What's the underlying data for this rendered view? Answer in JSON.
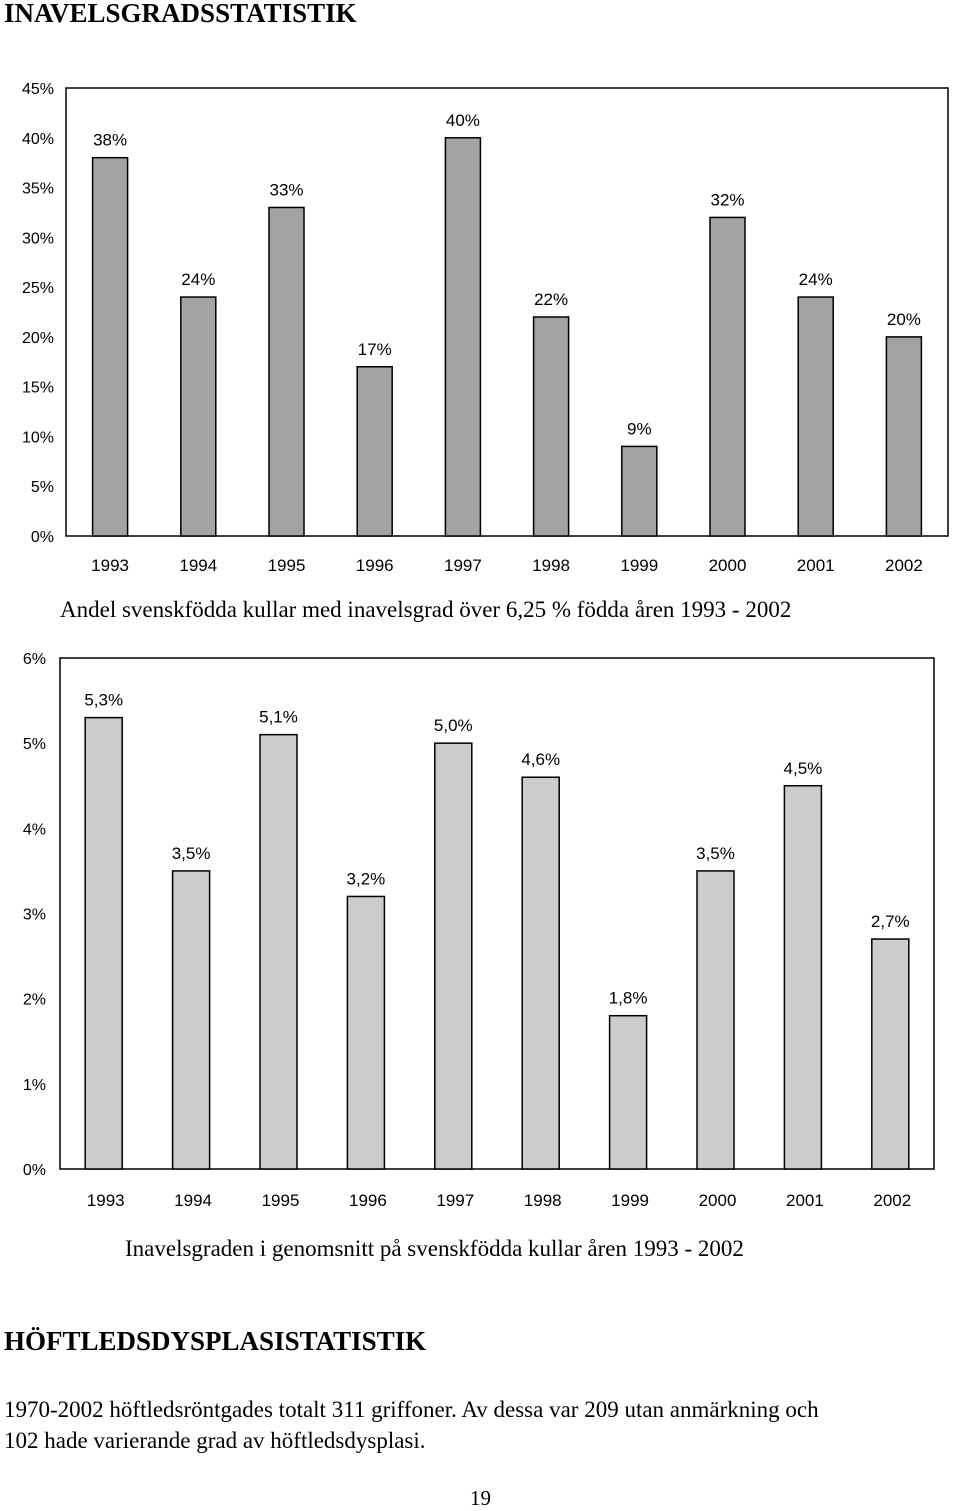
{
  "headings": {
    "inbreeding": "INAVELSGRADSSTATISTIK",
    "hip": "HÖFTLEDSDYSPLASISTATISTIK"
  },
  "captions": {
    "chart1": "Andel svenskfödda kullar med inavelsgrad över 6,25 % födda åren 1993 - 2002",
    "chart2": "Inavelsgraden i genomsnitt på svenskfödda kullar åren 1993 - 2002"
  },
  "paragraph": {
    "line1": "1970-2002 höftledsröntgades totalt 311 griffoner. Av dessa var 209 utan anmärkning och",
    "line2": "102 hade varierande grad av höftledsdysplasi."
  },
  "page_number": "19",
  "chart_data": [
    {
      "type": "bar",
      "categories": [
        "1993",
        "1994",
        "1995",
        "1996",
        "1997",
        "1998",
        "1999",
        "2000",
        "2001",
        "2002"
      ],
      "values": [
        38,
        24,
        33,
        17,
        40,
        22,
        9,
        32,
        24,
        20
      ],
      "value_labels": [
        "38%",
        "24%",
        "33%",
        "17%",
        "40%",
        "22%",
        "9%",
        "32%",
        "24%",
        "20%"
      ],
      "yticks": [
        "0%",
        "5%",
        "10%",
        "15%",
        "20%",
        "25%",
        "30%",
        "35%",
        "40%",
        "45%"
      ],
      "ylim": [
        0,
        45
      ],
      "ystep": 5,
      "grid": false,
      "bar_color": "#a3a3a3"
    },
    {
      "type": "bar",
      "categories": [
        "1993",
        "1994",
        "1995",
        "1996",
        "1997",
        "1998",
        "1999",
        "2000",
        "2001",
        "2002"
      ],
      "values": [
        5.3,
        3.5,
        5.1,
        3.2,
        5.0,
        4.6,
        1.8,
        3.5,
        4.5,
        2.7
      ],
      "value_labels": [
        "5,3%",
        "3,5%",
        "5,1%",
        "3,2%",
        "5,0%",
        "4,6%",
        "1,8%",
        "3,5%",
        "4,5%",
        "2,7%"
      ],
      "yticks": [
        "0%",
        "1%",
        "2%",
        "3%",
        "4%",
        "5%",
        "6%"
      ],
      "ylim": [
        0,
        6
      ],
      "ystep": 1,
      "grid": false,
      "bar_color": "#cccccc"
    }
  ]
}
